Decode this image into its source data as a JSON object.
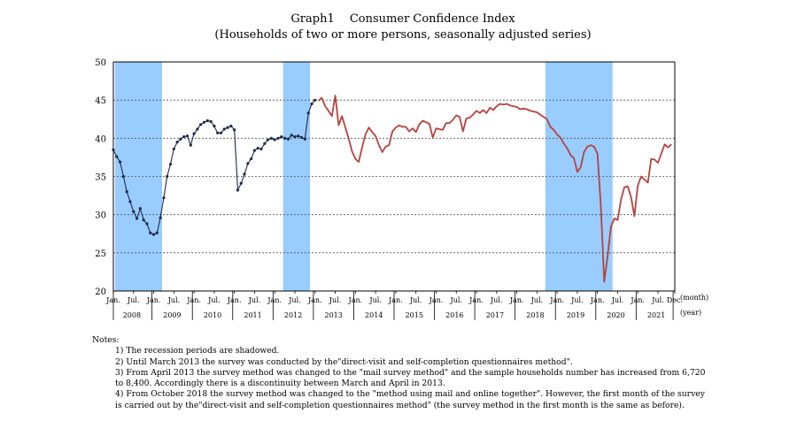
{
  "chart_data": {
    "type": "line",
    "title": "Graph1　 Consumer Confidence Index",
    "subtitle": "(Households of two or more persons, seasonally adjusted series)",
    "ylim": [
      20,
      50
    ],
    "yticks": [
      20,
      25,
      30,
      35,
      40,
      45,
      50
    ],
    "grid": "horizontal-dashed",
    "unit_month_label": "(month)",
    "unit_year_label": "(year)",
    "month_ticks": [
      {
        "month": 0,
        "label": "Jan."
      },
      {
        "month": 6,
        "label": "Jul."
      },
      {
        "month": 12,
        "label": "Jan."
      },
      {
        "month": 18,
        "label": "Jul."
      },
      {
        "month": 24,
        "label": "Jan."
      },
      {
        "month": 30,
        "label": "Jul."
      },
      {
        "month": 36,
        "label": "Jan."
      },
      {
        "month": 42,
        "label": "Jul."
      },
      {
        "month": 48,
        "label": "Jan."
      },
      {
        "month": 54,
        "label": "Jul."
      },
      {
        "month": 60,
        "label": "Jan."
      },
      {
        "month": 66,
        "label": "Jul."
      },
      {
        "month": 72,
        "label": "Jan."
      },
      {
        "month": 78,
        "label": "Jul."
      },
      {
        "month": 84,
        "label": "Jan."
      },
      {
        "month": 90,
        "label": "Jul."
      },
      {
        "month": 96,
        "label": "Jan."
      },
      {
        "month": 102,
        "label": "Jul."
      },
      {
        "month": 108,
        "label": "Jan."
      },
      {
        "month": 114,
        "label": "Jul."
      },
      {
        "month": 120,
        "label": "Jan."
      },
      {
        "month": 126,
        "label": "Jul."
      },
      {
        "month": 132,
        "label": "Jan."
      },
      {
        "month": 138,
        "label": "Jul."
      },
      {
        "month": 144,
        "label": "Jan."
      },
      {
        "month": 150,
        "label": "Jul."
      },
      {
        "month": 156,
        "label": "Jan."
      },
      {
        "month": 162,
        "label": "Jul."
      },
      {
        "month": 167,
        "label": "Dec."
      }
    ],
    "years": [
      "2008",
      "2009",
      "2010",
      "2011",
      "2012",
      "2013",
      "2014",
      "2015",
      "2016",
      "2017",
      "2018",
      "2019",
      "2020",
      "2021"
    ],
    "recessions": [
      {
        "start": "2008-02",
        "end": "2009-03"
      },
      {
        "start": "2012-04",
        "end": "2012-11"
      },
      {
        "start": "2018-10",
        "end": "2020-05"
      }
    ],
    "series": [
      {
        "color": "#1f2a4a",
        "marker": "dot",
        "start": "2008-01",
        "values": [
          38.5,
          37.6,
          36.9,
          35.0,
          33.0,
          31.7,
          30.4,
          29.5,
          30.8,
          29.3,
          28.8,
          27.6,
          27.4,
          27.6,
          29.6,
          32.2,
          35.0,
          36.6,
          38.6,
          39.5,
          39.9,
          40.2,
          40.3,
          39.1,
          40.6,
          41.2,
          41.8,
          42.1,
          42.3,
          42.2,
          41.6,
          40.7,
          40.7,
          41.2,
          41.4,
          41.6,
          41.1,
          33.2,
          34.1,
          35.3,
          36.7,
          37.3,
          38.4,
          38.7,
          38.6,
          39.3,
          39.8,
          40.0,
          39.8,
          40.0,
          40.2,
          40.0,
          39.9,
          40.4,
          40.2,
          40.3,
          40.1,
          39.9,
          43.3,
          44.5,
          45.0
        ]
      },
      {
        "color": "#b8423c",
        "start": "2013-02",
        "values": [
          44.9,
          45.3,
          44.2,
          43.6,
          42.9,
          45.6,
          41.7,
          42.9,
          41.4,
          40.0,
          38.3,
          37.3,
          36.9,
          38.8,
          40.5,
          41.4,
          40.8,
          40.3,
          39.1,
          38.2,
          38.9,
          39.1,
          40.9,
          41.4,
          41.7,
          41.5,
          41.5,
          40.9,
          41.3,
          40.8,
          41.8,
          42.3,
          42.1,
          41.9,
          40.1,
          41.3,
          41.2,
          41.1,
          42.0,
          42.0,
          42.4,
          43.0,
          42.8,
          40.9,
          42.6,
          42.7,
          43.1,
          43.6,
          43.3,
          43.7,
          43.3,
          44.0,
          43.7,
          44.2,
          44.5,
          44.4,
          44.5,
          44.3,
          44.2,
          44.1,
          43.8,
          43.9,
          43.8,
          43.6,
          43.5,
          43.4,
          43.1,
          42.8,
          42.5,
          41.5,
          41.1,
          40.5,
          40.1,
          39.3,
          38.7,
          37.8,
          37.4,
          35.6,
          36.2,
          38.2,
          38.9,
          39.1,
          38.9,
          38.0,
          31.1,
          21.2,
          24.5,
          28.4,
          29.5,
          29.3,
          32.0,
          33.6,
          33.7,
          32.3,
          29.8,
          33.8,
          35.0,
          34.6,
          34.2,
          37.3,
          37.2,
          36.8,
          38.0,
          39.2,
          38.8,
          39.2
        ]
      }
    ]
  },
  "notes": {
    "heading": "Notes:",
    "items": [
      "1) The recession periods are shadowed.",
      "2) Until March 2013 the survey was conducted by the\"direct-visit and self-completion questionnaires method\".",
      "3) From April 2013 the survey method was changed to the \"mail survey method\" and the sample households number has increased from 6,720 to 8,400. Accordingly there is a discontinuity between March and April in 2013.",
      "4) From October 2018 the survey method was changed to the \"method using mail and online together\". However, the first month of the survey is carried out by the\"direct-visit and self-completion questionnaires method\" (the survey method in the first month is the same as before)."
    ]
  }
}
